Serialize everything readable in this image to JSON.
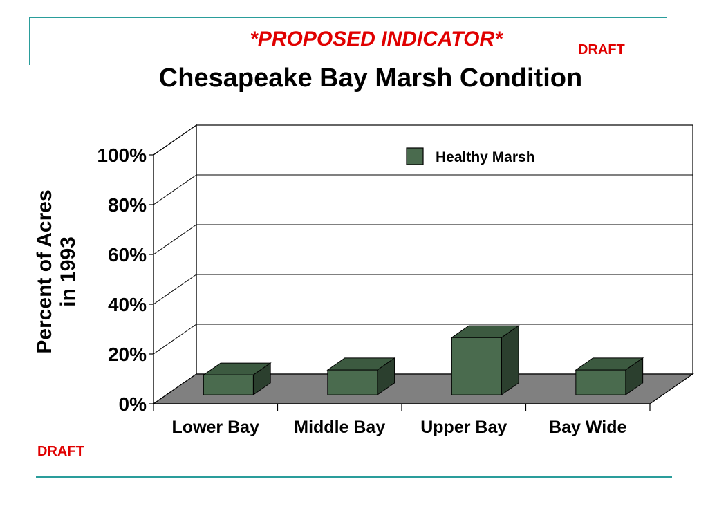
{
  "header": {
    "proposed": "*PROPOSED INDICATOR*",
    "draft_top": "DRAFT",
    "title": "Chesapeake Bay Marsh Condition"
  },
  "footer": {
    "draft_bottom": "DRAFT"
  },
  "colors": {
    "accent_rule": "#2a9d9b",
    "draft_red": "#e00000",
    "bar_front": "#4a6b4e",
    "bar_top": "#3c5a40",
    "bar_side": "#2b3f2e",
    "floor": "#808080"
  },
  "chart_data": {
    "type": "bar",
    "title": "Chesapeake Bay Marsh Condition",
    "ylabel_lines": [
      "Percent of Acres",
      "in 1993"
    ],
    "xlabel": "",
    "categories": [
      "Lower Bay",
      "Middle Bay",
      "Upper Bay",
      "Bay Wide"
    ],
    "series": [
      {
        "name": "Healthy Marsh",
        "values": [
          8,
          10,
          23,
          10
        ]
      }
    ],
    "ylim": [
      0,
      100
    ],
    "yticks": [
      "0%",
      "20%",
      "40%",
      "60%",
      "80%",
      "100%"
    ],
    "grid": true,
    "legend": "top-right",
    "style": "3d"
  }
}
